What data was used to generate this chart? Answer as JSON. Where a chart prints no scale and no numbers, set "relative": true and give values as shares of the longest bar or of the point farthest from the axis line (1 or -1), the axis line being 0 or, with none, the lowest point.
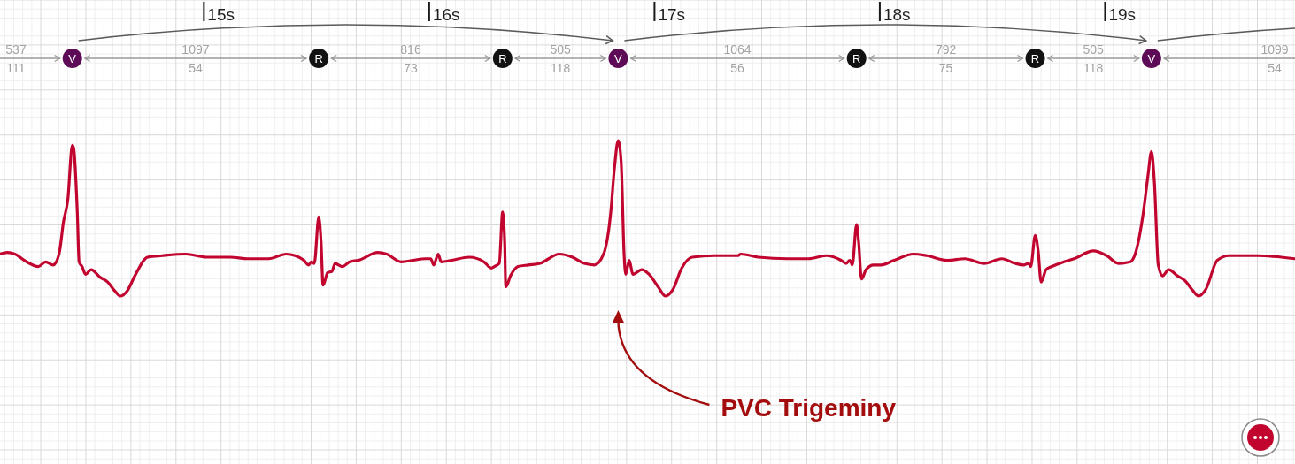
{
  "chart_data": {
    "type": "line",
    "relative": true,
    "x": [
      14.019,
      14.052,
      14.085,
      14.137,
      14.189,
      14.222,
      14.255,
      14.281,
      14.301,
      14.32,
      14.34,
      14.346,
      14.362,
      14.37,
      14.383,
      14.399,
      14.423,
      14.464,
      14.497,
      14.53,
      14.553,
      14.582,
      14.621,
      14.674,
      14.739,
      14.844,
      14.936,
      15.041,
      15.119,
      15.211,
      15.289,
      15.329,
      15.368,
      15.388,
      15.401,
      15.414,
      15.434,
      15.444,
      15.453,
      15.473,
      15.493,
      15.506,
      15.539,
      15.571,
      15.61,
      15.696,
      15.735,
      15.8,
      15.853,
      15.905,
      15.931,
      15.944,
      15.964,
      15.977,
      16.023,
      16.102,
      16.167,
      16.2,
      16.213,
      16.235,
      16.25,
      16.259,
      16.264,
      16.285,
      16.318,
      16.364,
      16.416,
      16.501,
      16.56,
      16.612,
      16.658,
      16.698,
      16.73,
      16.746,
      16.763,
      16.776,
      16.789,
      16.796,
      16.812,
      16.828,
      16.868,
      16.9,
      16.94,
      16.973,
      17.005,
      17.045,
      17.091,
      17.189,
      17.293,
      17.307,
      17.385,
      17.516,
      17.608,
      17.686,
      17.752,
      17.775,
      17.791,
      17.802,
      17.821,
      17.83,
      17.843,
      17.863,
      17.896,
      17.929,
      17.988,
      18.073,
      18.132,
      18.223,
      18.302,
      18.387,
      18.466,
      18.525,
      18.564,
      18.584,
      18.594,
      18.614,
      18.627,
      18.64,
      18.662,
      18.688,
      18.741,
      18.786,
      18.872,
      18.931,
      18.983,
      19.036,
      19.055,
      19.094,
      19.114,
      19.13,
      19.143,
      19.16,
      19.179,
      19.206,
      19.245,
      19.278,
      19.311,
      19.339,
      19.37,
      19.422,
      19.474,
      19.599,
      19.767
    ],
    "series": [
      {
        "color": "#c1052f",
        "values": [
          0.27,
          0.28,
          0.27,
          0.22,
          0.19,
          0.22,
          0.2,
          0.27,
          0.48,
          0.62,
          0.97,
          0.95,
          0.54,
          0.22,
          0.19,
          0.14,
          0.17,
          0.12,
          0.09,
          0.03,
          0,
          0.03,
          0.14,
          0.25,
          0.26,
          0.27,
          0.25,
          0.25,
          0.24,
          0.24,
          0.27,
          0.26,
          0.23,
          0.2,
          0.22,
          0.21,
          0.51,
          0.35,
          0.07,
          0.15,
          0.16,
          0.21,
          0.19,
          0.22,
          0.23,
          0.28,
          0.27,
          0.22,
          0.23,
          0.24,
          0.24,
          0.2,
          0.27,
          0.22,
          0.23,
          0.25,
          0.22,
          0.18,
          0.19,
          0.21,
          0.54,
          0.35,
          0.06,
          0.13,
          0.19,
          0.2,
          0.21,
          0.27,
          0.25,
          0.21,
          0.2,
          0.27,
          0.54,
          0.82,
          1,
          0.86,
          0.27,
          0.14,
          0.23,
          0.14,
          0.17,
          0.14,
          0.06,
          0,
          0.04,
          0.18,
          0.25,
          0.26,
          0.26,
          0.27,
          0.25,
          0.24,
          0.24,
          0.26,
          0.23,
          0.21,
          0.23,
          0.2,
          0.46,
          0.35,
          0.11,
          0.17,
          0.2,
          0.2,
          0.23,
          0.27,
          0.26,
          0.23,
          0.24,
          0.21,
          0.24,
          0.21,
          0.2,
          0.21,
          0.19,
          0.39,
          0.29,
          0.09,
          0.17,
          0.19,
          0.22,
          0.24,
          0.29,
          0.26,
          0.21,
          0.22,
          0.26,
          0.54,
          0.77,
          0.93,
          0.73,
          0.2,
          0.13,
          0.17,
          0.13,
          0.1,
          0.04,
          0,
          0.04,
          0.23,
          0.26,
          0.26,
          0.24
        ]
      }
    ],
    "xlim": [
      14.019,
      19.767
    ],
    "xticks": [
      {
        "value": 15,
        "label": "15s"
      },
      {
        "value": 16,
        "label": "16s"
      },
      {
        "value": 17,
        "label": "17s"
      },
      {
        "value": 18,
        "label": "18s"
      },
      {
        "value": 19,
        "label": "19s"
      }
    ],
    "grid": true,
    "line_style": "solid",
    "annotations": [
      "537",
      "111",
      "V",
      "1097",
      "54",
      "R",
      "816",
      "73",
      "R",
      "505",
      "118",
      "V",
      "1064",
      "56",
      "R",
      "792",
      "75",
      "R",
      "505",
      "118",
      "V",
      "1099",
      "54",
      "PVC Trigeminy"
    ]
  }
}
